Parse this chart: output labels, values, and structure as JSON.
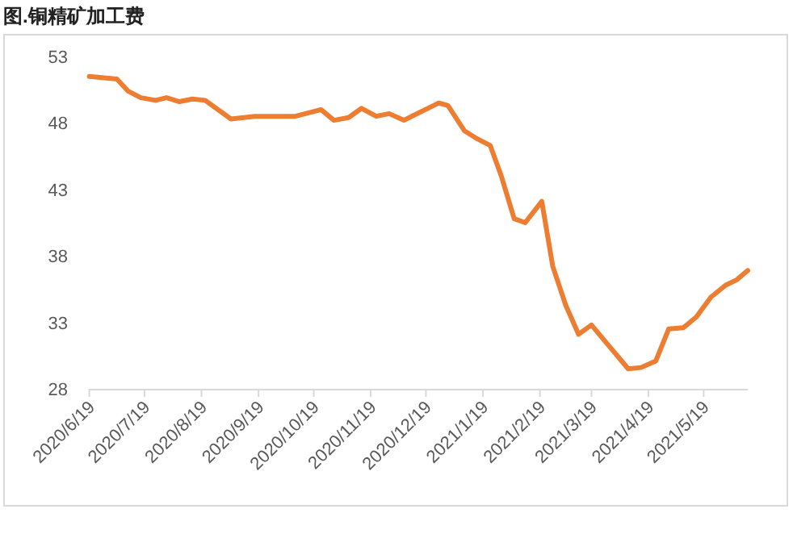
{
  "chart_data": {
    "type": "line",
    "title": "图.铜精矿加工费",
    "x": [
      "2020-06-19",
      "2020-07-04",
      "2020-07-10",
      "2020-07-17",
      "2020-07-25",
      "2020-07-31",
      "2020-08-07",
      "2020-08-14",
      "2020-08-21",
      "2020-09-04",
      "2020-09-17",
      "2020-10-09",
      "2020-10-23",
      "2020-10-30",
      "2020-11-07",
      "2020-11-14",
      "2020-11-22",
      "2020-11-29",
      "2020-12-07",
      "2020-12-26",
      "2020-12-31",
      "2021-01-09",
      "2021-01-16",
      "2021-01-23",
      "2021-01-29",
      "2021-02-05",
      "2021-02-11",
      "2021-02-20",
      "2021-02-26",
      "2021-03-05",
      "2021-03-12",
      "2021-03-19",
      "2021-04-08",
      "2021-04-15",
      "2021-04-23",
      "2021-04-30",
      "2021-05-08",
      "2021-05-15",
      "2021-05-23",
      "2021-05-31",
      "2021-06-06",
      "2021-06-12"
    ],
    "series": [
      {
        "color": "#ed7d31",
        "values": [
          51.5,
          51.3,
          50.4,
          49.9,
          49.7,
          49.9,
          49.6,
          49.8,
          49.7,
          48.3,
          48.5,
          48.5,
          49.0,
          48.2,
          48.4,
          49.1,
          48.5,
          48.7,
          48.2,
          49.5,
          49.3,
          47.4,
          46.8,
          46.3,
          44.0,
          40.8,
          40.5,
          42.1,
          37.2,
          34.3,
          32.1,
          32.8,
          29.5,
          29.6,
          30.1,
          32.5,
          32.6,
          33.4,
          34.9,
          35.8,
          36.2,
          36.9
        ]
      }
    ],
    "xlim": [
      "2020-06-19",
      "2021-06-12"
    ],
    "xticks": [
      {
        "value": "2020-06-19",
        "label": "2020/6/19"
      },
      {
        "value": "2020-07-19",
        "label": "2020/7/19"
      },
      {
        "value": "2020-08-19",
        "label": "2020/8/19"
      },
      {
        "value": "2020-09-19",
        "label": "2020/9/19"
      },
      {
        "value": "2020-10-19",
        "label": "2020/10/19"
      },
      {
        "value": "2020-11-19",
        "label": "2020/11/19"
      },
      {
        "value": "2020-12-19",
        "label": "2020/12/19"
      },
      {
        "value": "2021-01-19",
        "label": "2021/1/19"
      },
      {
        "value": "2021-02-19",
        "label": "2021/2/19"
      },
      {
        "value": "2021-03-19",
        "label": "2021/3/19"
      },
      {
        "value": "2021-04-19",
        "label": "2021/4/19"
      },
      {
        "value": "2021-05-19",
        "label": "2021/5/19"
      }
    ],
    "ylim": [
      28,
      53
    ],
    "yticks": [
      28,
      33,
      38,
      43,
      48,
      53
    ],
    "grid": false,
    "marker": "none",
    "line_style": "solid"
  }
}
